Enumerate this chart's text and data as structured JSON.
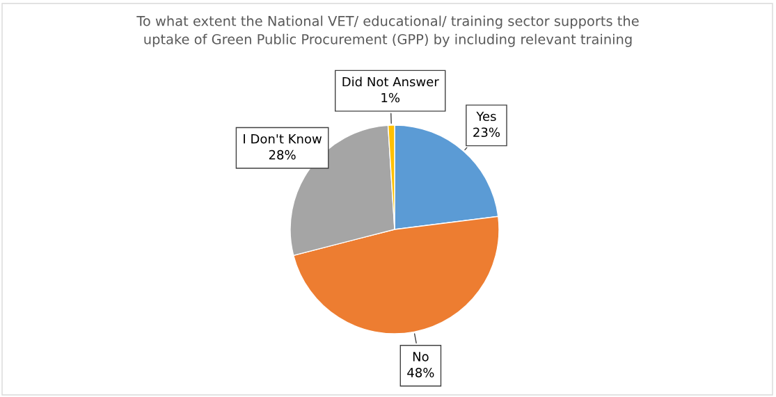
{
  "chart_data": {
    "type": "pie",
    "title": "To what extent the National VET/ educational/ training sector supports the\nuptake of Green Public Procurement (GPP) by including relevant training",
    "categories": [
      "Yes",
      "No",
      "I Don't Know",
      "Did Not Answer"
    ],
    "values": [
      23,
      48,
      28,
      1
    ],
    "colors": [
      "#5b9bd5",
      "#ed7d31",
      "#a5a5a5",
      "#ffc000"
    ],
    "value_labels": [
      "23%",
      "48%",
      "28%",
      "1%"
    ],
    "legend": false
  }
}
